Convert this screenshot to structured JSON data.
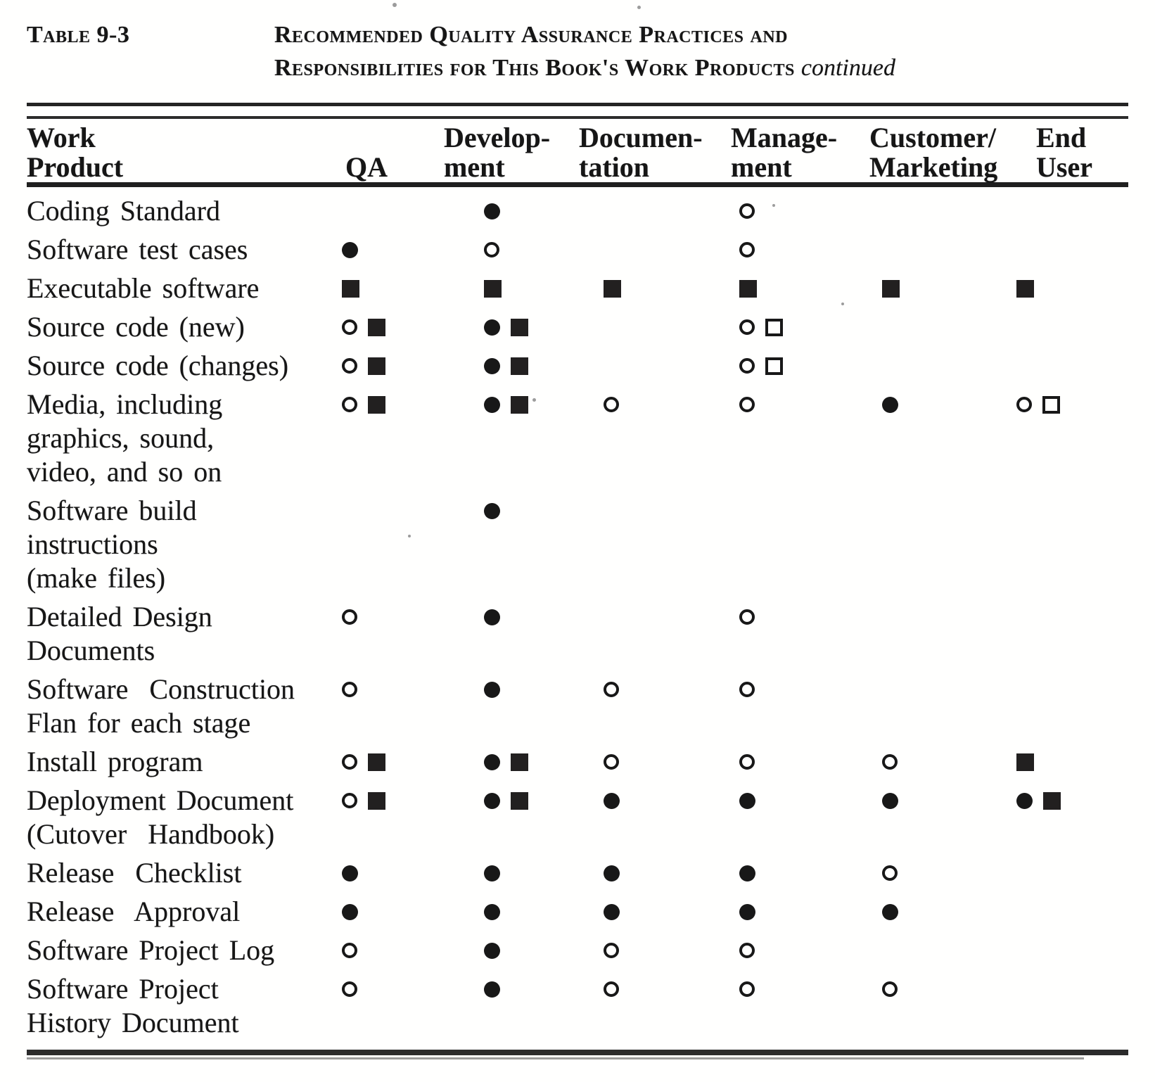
{
  "page": {
    "label": "Table 9-3",
    "title_line1": "Recommended Quality Assurance Practices and",
    "title_line2": "Responsibilities for This Book's Work Products",
    "title_continued": "continued"
  },
  "table": {
    "row_header_lines": [
      "Work",
      "Product"
    ],
    "columns": [
      {
        "id": "qa",
        "lines": [
          "QA"
        ]
      },
      {
        "id": "development",
        "lines": [
          "Develop-",
          "ment"
        ]
      },
      {
        "id": "documentation",
        "lines": [
          "Documen-",
          "tation"
        ]
      },
      {
        "id": "management",
        "lines": [
          "Manage-",
          "ment"
        ]
      },
      {
        "id": "customer-marketing",
        "lines": [
          "Customer/",
          "Marketing"
        ]
      },
      {
        "id": "end-user",
        "lines": [
          "End",
          "User"
        ]
      }
    ],
    "rows": [
      {
        "label_lines": [
          "Coding Standard"
        ],
        "cells": [
          [],
          [
            "filled-circle"
          ],
          [],
          [
            "open-circle"
          ],
          [],
          []
        ]
      },
      {
        "label_lines": [
          "Software test cases"
        ],
        "cells": [
          [
            "filled-circle"
          ],
          [
            "open-circle"
          ],
          [],
          [
            "open-circle"
          ],
          [],
          []
        ]
      },
      {
        "label_lines": [
          "Executable software"
        ],
        "cells": [
          [
            "filled-square"
          ],
          [
            "filled-square"
          ],
          [
            "filled-square"
          ],
          [
            "filled-square"
          ],
          [
            "filled-square"
          ],
          [
            "filled-square"
          ]
        ]
      },
      {
        "label_lines": [
          "Source code (new)"
        ],
        "cells": [
          [
            "open-circle",
            "filled-square"
          ],
          [
            "filled-circle",
            "filled-square"
          ],
          [],
          [
            "open-circle",
            "open-square"
          ],
          [],
          []
        ]
      },
      {
        "label_lines": [
          "Source code (changes)"
        ],
        "cells": [
          [
            "open-circle",
            "filled-square"
          ],
          [
            "filled-circle",
            "filled-square"
          ],
          [],
          [
            "open-circle",
            "open-square"
          ],
          [],
          []
        ]
      },
      {
        "label_lines": [
          "Media, including",
          "graphics, sound,",
          "video, and so on"
        ],
        "cells": [
          [
            "open-circle",
            "filled-square"
          ],
          [
            "filled-circle",
            "filled-square"
          ],
          [
            "open-circle"
          ],
          [
            "open-circle"
          ],
          [
            "filled-circle"
          ],
          [
            "open-circle",
            "open-square"
          ]
        ]
      },
      {
        "label_lines": [
          "Software build",
          "instructions",
          "(make files)"
        ],
        "cells": [
          [],
          [
            "filled-circle"
          ],
          [],
          [],
          [],
          []
        ]
      },
      {
        "label_lines": [
          "Detailed Design",
          "Documents"
        ],
        "cells": [
          [
            "open-circle"
          ],
          [
            "filled-circle"
          ],
          [],
          [
            "open-circle"
          ],
          [],
          []
        ]
      },
      {
        "label_lines": [
          "Software  Construction",
          "Flan for each stage"
        ],
        "cells": [
          [
            "open-circle"
          ],
          [
            "filled-circle"
          ],
          [
            "open-circle"
          ],
          [
            "open-circle"
          ],
          [],
          []
        ]
      },
      {
        "label_lines": [
          "Install program"
        ],
        "cells": [
          [
            "open-circle",
            "filled-square"
          ],
          [
            "filled-circle",
            "filled-square"
          ],
          [
            "open-circle"
          ],
          [
            "open-circle"
          ],
          [
            "open-circle"
          ],
          [
            "filled-square"
          ]
        ]
      },
      {
        "label_lines": [
          "Deployment Document",
          "(Cutover  Handbook)"
        ],
        "cells": [
          [
            "open-circle",
            "filled-square"
          ],
          [
            "filled-circle",
            "filled-square"
          ],
          [
            "filled-circle"
          ],
          [
            "filled-circle"
          ],
          [
            "filled-circle"
          ],
          [
            "filled-circle",
            "filled-square"
          ]
        ]
      },
      {
        "label_lines": [
          "Release  Checklist"
        ],
        "cells": [
          [
            "filled-circle"
          ],
          [
            "filled-circle"
          ],
          [
            "filled-circle"
          ],
          [
            "filled-circle"
          ],
          [
            "open-circle"
          ],
          []
        ]
      },
      {
        "label_lines": [
          "Release  Approval"
        ],
        "cells": [
          [
            "filled-circle"
          ],
          [
            "filled-circle"
          ],
          [
            "filled-circle"
          ],
          [
            "filled-circle"
          ],
          [
            "filled-circle"
          ],
          []
        ]
      },
      {
        "label_lines": [
          "Software Project Log"
        ],
        "cells": [
          [
            "open-circle"
          ],
          [
            "filled-circle"
          ],
          [
            "open-circle"
          ],
          [
            "open-circle"
          ],
          [],
          []
        ]
      },
      {
        "label_lines": [
          "Software Project",
          "History Document"
        ],
        "cells": [
          [
            "open-circle"
          ],
          [
            "filled-circle"
          ],
          [
            "open-circle"
          ],
          [
            "open-circle"
          ],
          [
            "open-circle"
          ],
          []
        ]
      }
    ]
  },
  "colors": {
    "ink": "#161616",
    "paper": "#fffffe"
  }
}
